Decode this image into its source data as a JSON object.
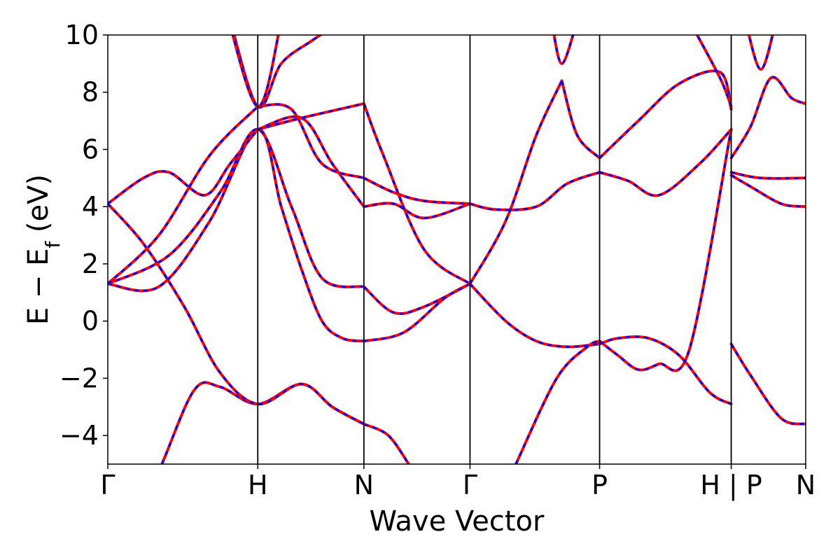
{
  "chart_data": {
    "type": "line",
    "title": "",
    "xlabel": "Wave Vector",
    "ylabel_main": "E − E",
    "ylabel_sub": "f",
    "ylabel_unit": " (eV)",
    "ylim": [
      -5,
      10
    ],
    "yticks": [
      10,
      8,
      6,
      4,
      2,
      0,
      -2,
      -4
    ],
    "ytick_labels": [
      "10",
      "8",
      "6",
      "4",
      "2",
      "0",
      "−2",
      "−4"
    ],
    "xlim": [
      0,
      6.84
    ],
    "kpoints": [
      {
        "x": 0.0,
        "label": "Γ"
      },
      {
        "x": 1.47,
        "label": "H"
      },
      {
        "x": 2.51,
        "label": "N"
      },
      {
        "x": 3.55,
        "label": "Γ"
      },
      {
        "x": 4.82,
        "label": "P"
      },
      {
        "x": 6.11,
        "label": "H | P"
      },
      {
        "x": 6.84,
        "label": "N"
      }
    ],
    "colors": {
      "series_a": "#ff0000",
      "series_b": "#0000ff",
      "frame": "#000000"
    },
    "series": [
      {
        "bands": [
          {
            "x": [
              0.0,
              0.22,
              0.53,
              0.85,
              1.1,
              1.47,
              1.9,
              2.2,
              2.51
            ],
            "y": [
              -9.0,
              -7.6,
              -5.0,
              -2.4,
              -2.3,
              -2.9,
              -2.2,
              -3.0,
              -3.6
            ]
          },
          {
            "x": [
              2.51,
              2.75,
              2.95
            ],
            "y": [
              -3.6,
              -4.0,
              -5.0
            ]
          },
          {
            "x": [
              4.0,
              4.4,
              4.7,
              4.82
            ],
            "y": [
              -5.0,
              -2.0,
              -0.9,
              -0.7
            ]
          },
          {
            "x": [
              4.82,
              5.0,
              5.2,
              5.4,
              5.7,
              6.11
            ],
            "y": [
              -0.7,
              -1.2,
              -1.7,
              -1.5,
              -1.0,
              6.7
            ]
          },
          {
            "x": [
              6.11,
              6.3,
              6.6,
              6.84
            ],
            "y": [
              -0.8,
              -1.9,
              -3.4,
              -3.6
            ]
          },
          {
            "x": [
              0.0,
              0.35,
              0.75,
              1.1,
              1.47,
              1.9,
              2.2,
              2.51
            ],
            "y": [
              4.1,
              2.7,
              0.5,
              -1.8,
              -2.9,
              -2.2,
              -3.0,
              -3.6
            ]
          },
          {
            "x": [
              0.0,
              0.5,
              1.0,
              1.47,
              1.7,
              1.9,
              2.1,
              2.3,
              2.51
            ],
            "y": [
              1.3,
              1.2,
              3.5,
              6.7,
              4.0,
              1.8,
              0.0,
              -0.6,
              -0.7
            ]
          },
          {
            "x": [
              2.51,
              2.9,
              3.3,
              3.55
            ],
            "y": [
              -0.7,
              -0.4,
              0.8,
              1.3
            ]
          },
          {
            "x": [
              3.55,
              3.9,
              4.2,
              4.5,
              4.82
            ],
            "y": [
              1.3,
              0.0,
              -0.7,
              -0.9,
              -0.8
            ]
          },
          {
            "x": [
              4.82,
              5.0,
              5.3,
              5.6,
              5.9,
              6.11
            ],
            "y": [
              -0.8,
              -0.6,
              -0.6,
              -1.2,
              -2.5,
              -2.9
            ]
          },
          {
            "x": [
              0.0,
              0.6,
              1.1,
              1.47,
              1.8,
              2.1,
              2.51
            ],
            "y": [
              1.3,
              2.3,
              4.5,
              6.7,
              4.0,
              1.5,
              1.2
            ]
          },
          {
            "x": [
              2.51,
              2.8,
              3.1,
              3.55
            ],
            "y": [
              1.2,
              0.3,
              0.5,
              1.3
            ]
          },
          {
            "x": [
              0.0,
              0.35,
              0.6,
              0.95,
              1.2,
              1.47
            ],
            "y": [
              4.1,
              5.0,
              5.2,
              4.4,
              5.5,
              6.7
            ]
          },
          {
            "x": [
              1.47,
              1.9,
              2.2,
              2.51
            ],
            "y": [
              6.7,
              7.1,
              5.5,
              4.0
            ]
          },
          {
            "x": [
              2.51,
              2.8,
              3.1,
              3.55
            ],
            "y": [
              4.0,
              4.1,
              3.6,
              4.1
            ]
          },
          {
            "x": [
              3.55,
              3.8,
              4.2,
              4.5,
              4.82
            ],
            "y": [
              4.1,
              3.9,
              4.0,
              4.8,
              5.2
            ]
          },
          {
            "x": [
              4.82,
              5.1,
              5.4,
              5.8,
              6.11
            ],
            "y": [
              5.2,
              4.9,
              4.4,
              5.5,
              6.7
            ]
          },
          {
            "x": [
              6.11,
              6.4,
              6.84
            ],
            "y": [
              5.2,
              5.0,
              5.0
            ]
          },
          {
            "x": [
              6.11,
              6.3,
              6.6,
              6.84
            ],
            "y": [
              5.1,
              4.7,
              4.1,
              4.0
            ]
          },
          {
            "x": [
              0.0,
              0.5,
              1.0,
              1.47
            ],
            "y": [
              1.3,
              3.0,
              5.8,
              7.5
            ]
          },
          {
            "x": [
              1.47,
              1.8,
              2.1,
              2.51
            ],
            "y": [
              7.5,
              7.4,
              5.5,
              5.0
            ]
          },
          {
            "x": [
              2.51,
              2.8,
              3.1,
              3.55
            ],
            "y": [
              5.0,
              4.5,
              4.2,
              4.1
            ]
          },
          {
            "x": [
              1.47,
              1.9,
              2.51
            ],
            "y": [
              6.7,
              7.1,
              7.6
            ]
          },
          {
            "x": [
              2.51,
              2.7,
              3.1,
              3.55
            ],
            "y": [
              7.6,
              5.8,
              2.5,
              1.3
            ]
          },
          {
            "x": [
              3.55,
              3.9,
              4.2,
              4.45
            ],
            "y": [
              1.3,
              3.5,
              6.5,
              8.4
            ]
          },
          {
            "x": [
              4.45,
              4.6,
              4.82
            ],
            "y": [
              8.4,
              6.5,
              5.7
            ]
          },
          {
            "x": [
              4.82,
              5.2,
              5.6,
              6.0,
              6.11
            ],
            "y": [
              5.7,
              7.0,
              8.3,
              8.7,
              7.4
            ]
          },
          {
            "x": [
              6.11,
              6.3,
              6.5,
              6.7,
              6.84
            ],
            "y": [
              5.7,
              6.8,
              8.5,
              7.8,
              7.6
            ]
          },
          {
            "x": [
              1.2,
              1.47,
              1.7,
              2.0,
              2.3
            ],
            "y": [
              10.5,
              7.5,
              9.0,
              9.8,
              10.5
            ]
          },
          {
            "x": [
              1.15,
              1.47,
              1.7
            ],
            "y": [
              11.0,
              7.5,
              10.5
            ]
          },
          {
            "x": [
              4.35,
              4.45,
              4.6
            ],
            "y": [
              10.5,
              9.0,
              10.5
            ]
          },
          {
            "x": [
              5.7,
              6.0,
              6.11
            ],
            "y": [
              10.5,
              8.5,
              7.5
            ]
          },
          {
            "x": [
              6.25,
              6.4,
              6.55
            ],
            "y": [
              10.5,
              8.8,
              10.5
            ]
          }
        ]
      }
    ]
  }
}
